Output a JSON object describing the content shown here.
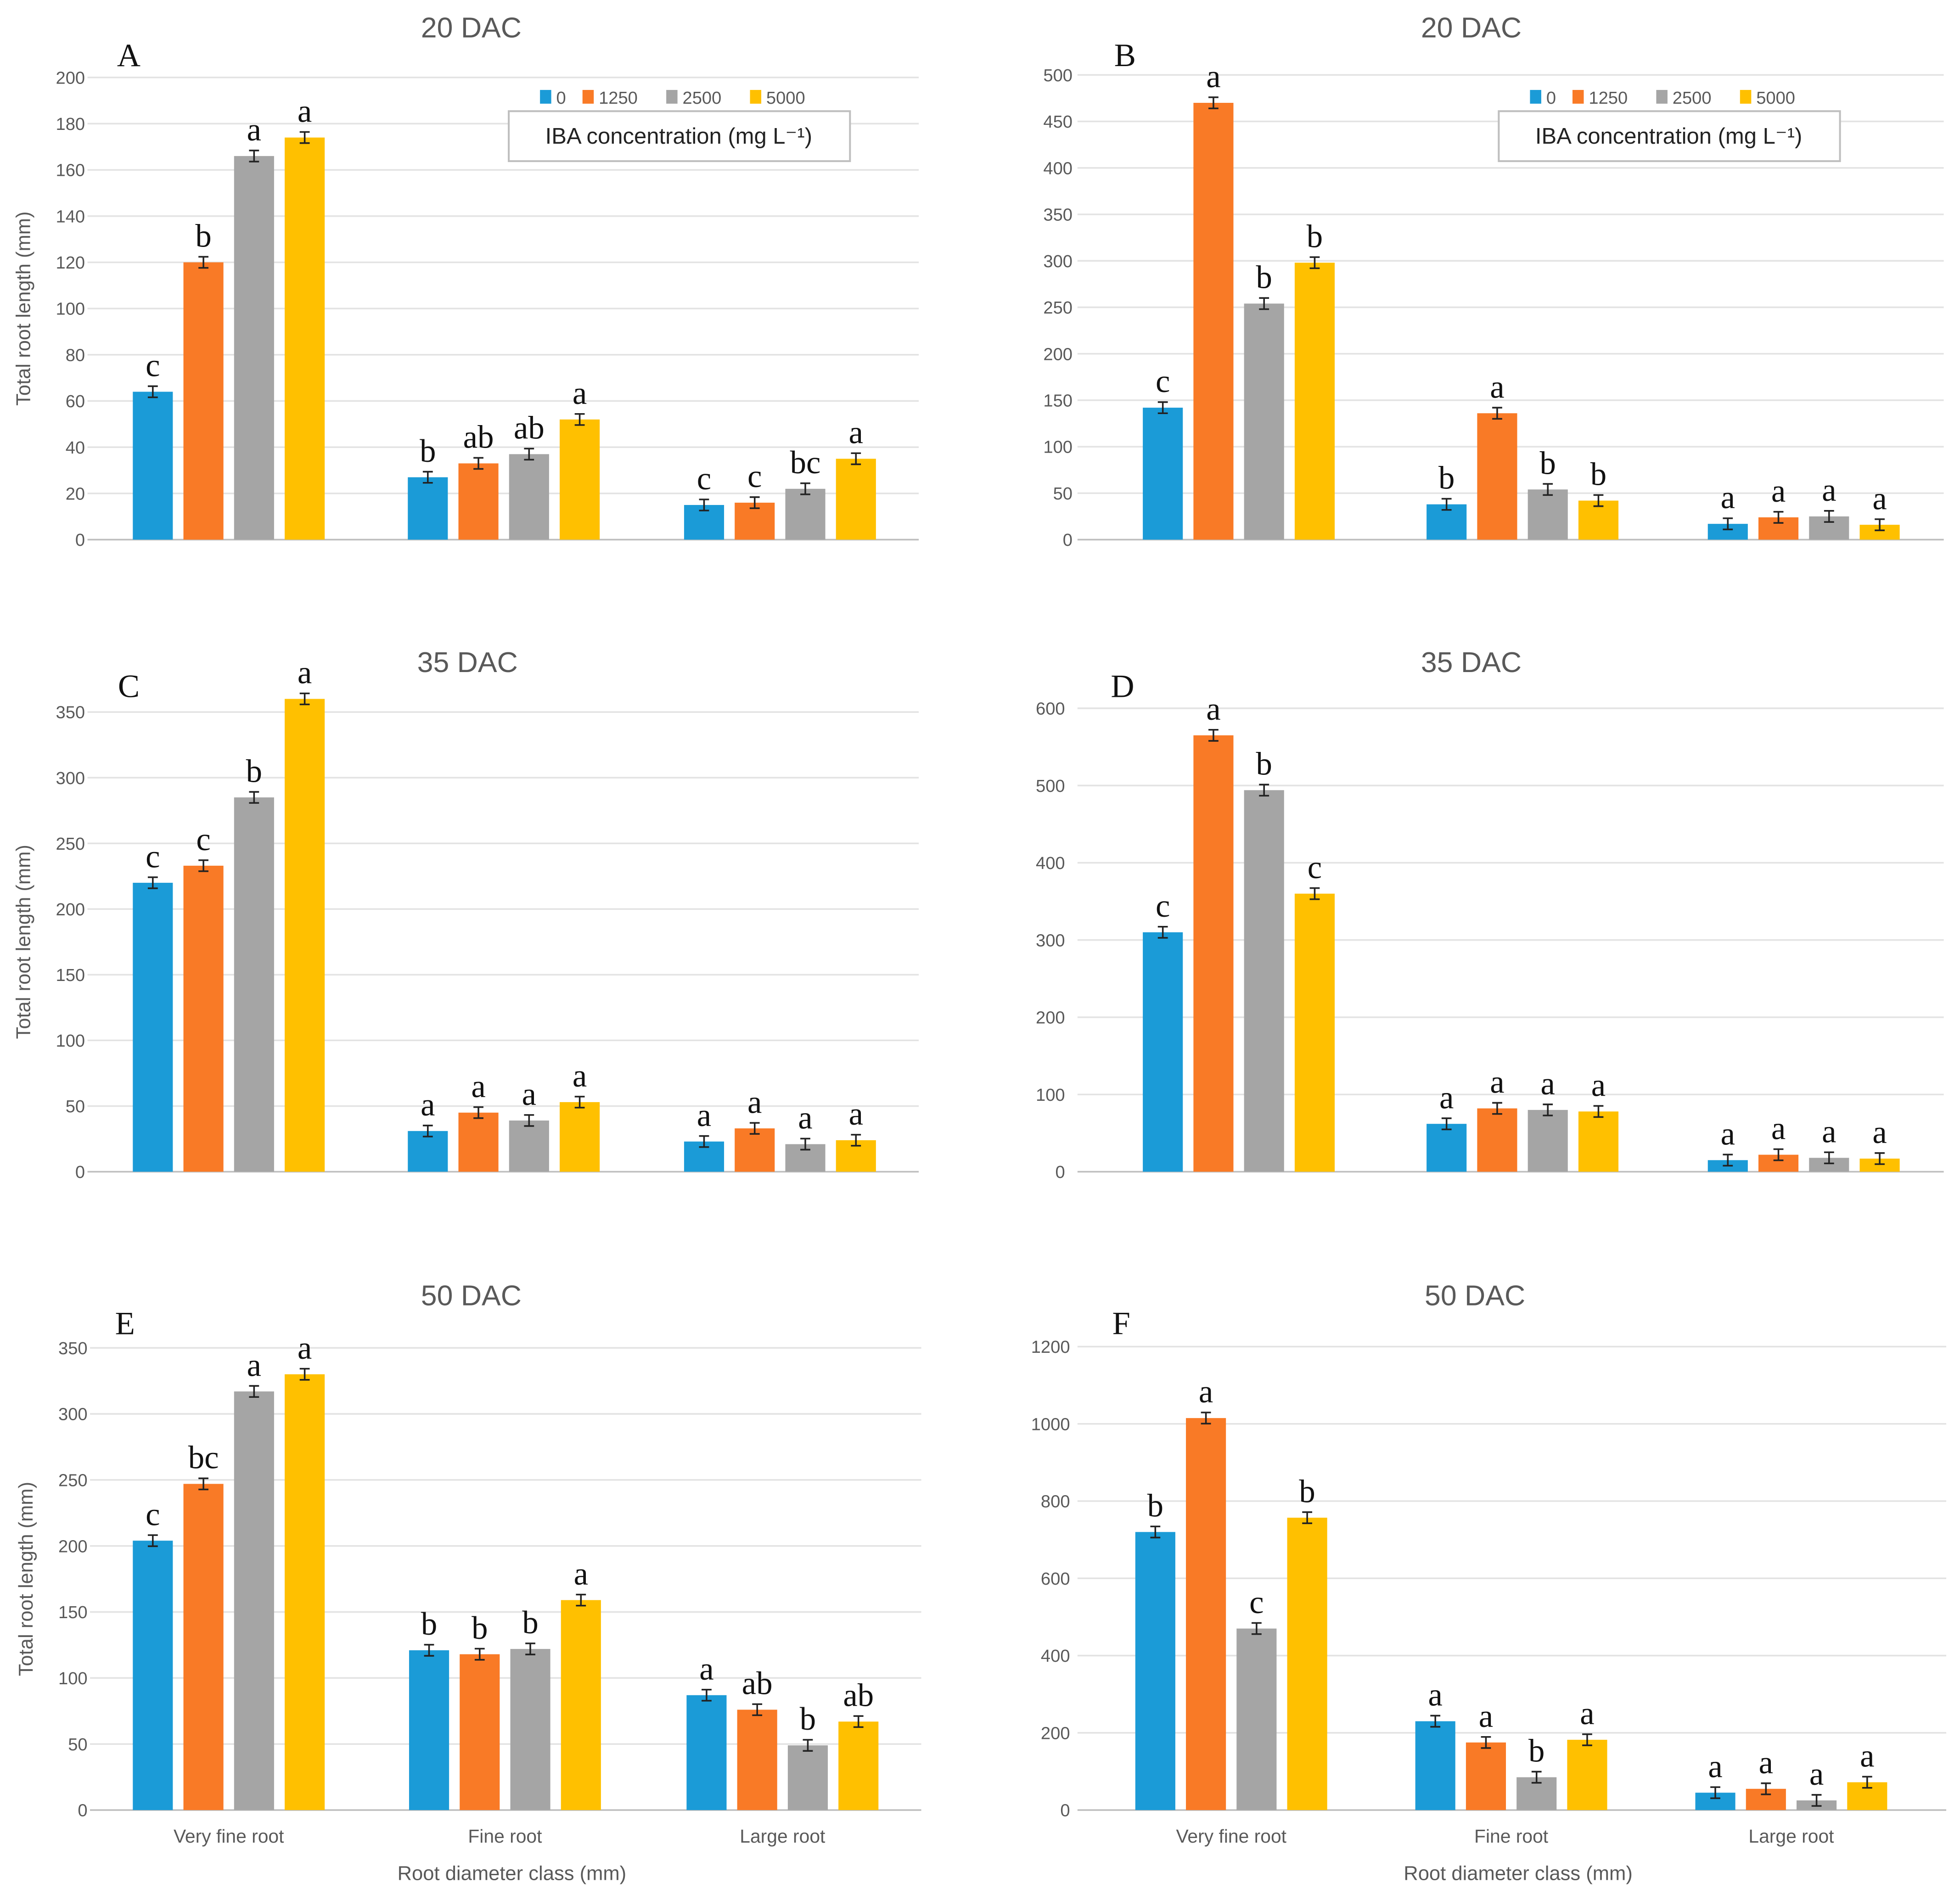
{
  "colors": {
    "0": "#1b9bd7",
    "1250": "#f97a26",
    "2500": "#a5a5a5",
    "5000": "#ffc000"
  },
  "legend": {
    "title": "IBA concentration (mg L⁻¹)",
    "entries": [
      "0",
      "1250",
      "2500",
      "5000"
    ]
  },
  "chart_data": [
    {
      "panel": "A",
      "type": "bar",
      "title": "20 DAC",
      "ylabel": "Total root length (mm)",
      "xlabel": "",
      "ylim": [
        0,
        200
      ],
      "ystep": 20,
      "legend": true,
      "show_categories": false,
      "categories": [
        "Very fine root",
        "Fine  root",
        "Large root"
      ],
      "series": [
        {
          "name": "0",
          "values": [
            64,
            27,
            15
          ],
          "letters": [
            "c",
            "b",
            "c"
          ]
        },
        {
          "name": "1250",
          "values": [
            120,
            33,
            16
          ],
          "letters": [
            "b",
            "ab",
            "c"
          ]
        },
        {
          "name": "2500",
          "values": [
            166,
            37,
            22
          ],
          "letters": [
            "a",
            "ab",
            "bc"
          ]
        },
        {
          "name": "5000",
          "values": [
            174,
            52,
            35
          ],
          "letters": [
            "a",
            "a",
            "a"
          ]
        }
      ]
    },
    {
      "panel": "B",
      "type": "bar",
      "title": "20 DAC",
      "ylabel": "",
      "xlabel": "",
      "ylim": [
        0,
        500
      ],
      "ystep": 50,
      "legend": true,
      "show_categories": false,
      "categories": [
        "Very fine root",
        "Fine  root",
        "Large root"
      ],
      "series": [
        {
          "name": "0",
          "values": [
            142,
            38,
            17
          ],
          "letters": [
            "c",
            "b",
            "a"
          ]
        },
        {
          "name": "1250",
          "values": [
            470,
            136,
            24
          ],
          "letters": [
            "a",
            "a",
            "a"
          ]
        },
        {
          "name": "2500",
          "values": [
            254,
            54,
            25
          ],
          "letters": [
            "b",
            "b",
            "a"
          ]
        },
        {
          "name": "5000",
          "values": [
            298,
            42,
            16
          ],
          "letters": [
            "b",
            "b",
            "a"
          ]
        }
      ]
    },
    {
      "panel": "C",
      "type": "bar",
      "title": "35 DAC",
      "ylabel": "Total root length (mm)",
      "xlabel": "",
      "ylim": [
        0,
        350
      ],
      "ystep": 50,
      "legend": false,
      "show_categories": false,
      "categories": [
        "Very fine root",
        "Fine  root",
        "Large root"
      ],
      "series": [
        {
          "name": "0",
          "values": [
            220,
            31,
            23
          ],
          "letters": [
            "c",
            "a",
            "a"
          ]
        },
        {
          "name": "1250",
          "values": [
            233,
            45,
            33
          ],
          "letters": [
            "c",
            "a",
            "a"
          ]
        },
        {
          "name": "2500",
          "values": [
            285,
            39,
            21
          ],
          "letters": [
            "b",
            "a",
            "a"
          ]
        },
        {
          "name": "5000",
          "values": [
            360,
            53,
            24
          ],
          "letters": [
            "a",
            "a",
            "a"
          ]
        }
      ]
    },
    {
      "panel": "D",
      "type": "bar",
      "title": "35 DAC",
      "ylabel": "",
      "xlabel": "",
      "ylim": [
        0,
        600
      ],
      "ystep": 100,
      "legend": false,
      "show_categories": false,
      "categories": [
        "Very fine root",
        "Fine  root",
        "Large root"
      ],
      "series": [
        {
          "name": "0",
          "values": [
            310,
            62,
            15
          ],
          "letters": [
            "c",
            "a",
            "a"
          ]
        },
        {
          "name": "1250",
          "values": [
            565,
            82,
            22
          ],
          "letters": [
            "a",
            "a",
            "a"
          ]
        },
        {
          "name": "2500",
          "values": [
            494,
            80,
            18
          ],
          "letters": [
            "b",
            "a",
            "a"
          ]
        },
        {
          "name": "5000",
          "values": [
            360,
            78,
            17
          ],
          "letters": [
            "c",
            "a",
            "a"
          ]
        }
      ]
    },
    {
      "panel": "E",
      "type": "bar",
      "title": "50 DAC",
      "ylabel": "Total root length (mm)",
      "xlabel": "Root diameter class (mm)",
      "ylim": [
        0,
        350
      ],
      "ystep": 50,
      "legend": false,
      "show_categories": true,
      "categories": [
        "Very fine root",
        "Fine  root",
        "Large root"
      ],
      "series": [
        {
          "name": "0",
          "values": [
            204,
            121,
            87
          ],
          "letters": [
            "c",
            "b",
            "a"
          ]
        },
        {
          "name": "1250",
          "values": [
            247,
            118,
            76
          ],
          "letters": [
            "bc",
            "b",
            "ab"
          ]
        },
        {
          "name": "2500",
          "values": [
            317,
            122,
            49
          ],
          "letters": [
            "a",
            "b",
            "b"
          ]
        },
        {
          "name": "5000",
          "values": [
            330,
            159,
            67
          ],
          "letters": [
            "a",
            "a",
            "ab"
          ]
        }
      ]
    },
    {
      "panel": "F",
      "type": "bar",
      "title": "50 DAC",
      "ylabel": "",
      "xlabel": "Root diameter class (mm)",
      "ylim": [
        0,
        1200
      ],
      "ystep": 200,
      "legend": false,
      "show_categories": true,
      "categories": [
        "Very fine root",
        "Fine  root",
        "Large root"
      ],
      "series": [
        {
          "name": "0",
          "values": [
            720,
            230,
            45
          ],
          "letters": [
            "b",
            "a",
            "a"
          ]
        },
        {
          "name": "1250",
          "values": [
            1015,
            175,
            55
          ],
          "letters": [
            "a",
            "a",
            "a"
          ]
        },
        {
          "name": "2500",
          "values": [
            470,
            85,
            25
          ],
          "letters": [
            "c",
            "b",
            "a"
          ]
        },
        {
          "name": "5000",
          "values": [
            757,
            182,
            72
          ],
          "letters": [
            "b",
            "a",
            "a"
          ]
        }
      ]
    }
  ]
}
